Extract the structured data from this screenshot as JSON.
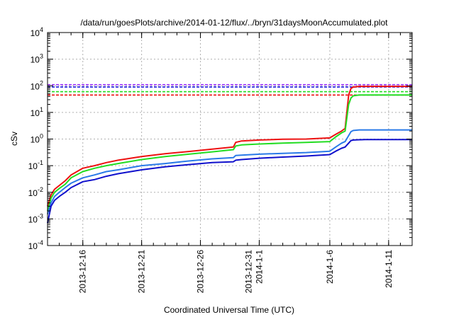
{
  "chart_data": {
    "type": "line",
    "title": "/data/run/goesPlots/archive/2014-01-12/flux/../bryn/31daysMoonAccumulated.plot",
    "xlabel": "Coordinated Universal Time (UTC)",
    "ylabel": "cSv",
    "yscale": "log",
    "ylim": [
      0.0001,
      10000
    ],
    "xlim": [
      0,
      31
    ],
    "grid": true,
    "y_ticks": [
      {
        "value": 0.0001,
        "base": "10",
        "exp": "-4"
      },
      {
        "value": 0.001,
        "base": "10",
        "exp": "-3"
      },
      {
        "value": 0.01,
        "base": "10",
        "exp": "-2"
      },
      {
        "value": 0.1,
        "base": "10",
        "exp": "-1"
      },
      {
        "value": 1,
        "base": "10",
        "exp": "0"
      },
      {
        "value": 10,
        "base": "10",
        "exp": "1"
      },
      {
        "value": 100,
        "base": "10",
        "exp": "2"
      },
      {
        "value": 1000,
        "base": "10",
        "exp": "3"
      },
      {
        "value": 10000,
        "base": "10",
        "exp": "4"
      }
    ],
    "x_ticks": [
      {
        "x": 3,
        "lines": [
          "2013-12-16"
        ]
      },
      {
        "x": 8,
        "lines": [
          "2013-12-21"
        ]
      },
      {
        "x": 13,
        "lines": [
          "2013-12-26"
        ]
      },
      {
        "x": 18,
        "lines": [
          "2013-12-31",
          "2014-1-1"
        ]
      },
      {
        "x": 24,
        "lines": [
          "2014-1-6"
        ]
      },
      {
        "x": 29,
        "lines": [
          "2014-1-11"
        ]
      }
    ],
    "thresholds": [
      {
        "value": 110,
        "color": "#9b30ff"
      },
      {
        "value": 90,
        "color": "#1a1adf"
      },
      {
        "value": 60,
        "color": "#22dd22"
      },
      {
        "value": 45,
        "color": "#ee1111"
      }
    ],
    "series": [
      {
        "color": "#ee1111",
        "x": [
          0,
          0.3,
          0.6,
          1,
          1.5,
          2,
          3,
          4,
          5,
          6,
          8,
          10,
          12,
          14,
          15.8,
          16,
          16.5,
          18,
          20,
          22,
          24,
          24.5,
          25,
          25.3,
          25.6,
          25.8,
          26,
          26.5,
          27,
          28,
          29,
          30,
          31
        ],
        "y": [
          0.003,
          0.008,
          0.013,
          0.018,
          0.027,
          0.045,
          0.08,
          0.1,
          0.13,
          0.16,
          0.22,
          0.28,
          0.34,
          0.42,
          0.5,
          0.75,
          0.85,
          0.92,
          0.98,
          1.0,
          1.1,
          1.5,
          2.0,
          2.5,
          45,
          80,
          90,
          95,
          95,
          95,
          95,
          95,
          95
        ]
      },
      {
        "color": "#22dd22",
        "x": [
          0,
          0.3,
          0.6,
          1,
          1.5,
          2,
          3,
          4,
          5,
          6,
          8,
          10,
          12,
          14,
          15.8,
          16,
          16.5,
          18,
          20,
          22,
          24,
          24.5,
          25,
          25.3,
          25.6,
          25.8,
          26,
          26.5,
          27,
          28,
          29,
          30,
          31
        ],
        "y": [
          0.002,
          0.006,
          0.01,
          0.014,
          0.02,
          0.035,
          0.06,
          0.08,
          0.1,
          0.12,
          0.17,
          0.22,
          0.27,
          0.33,
          0.4,
          0.55,
          0.6,
          0.65,
          0.7,
          0.75,
          0.8,
          1.2,
          1.7,
          2.0,
          20,
          35,
          42,
          45,
          45,
          45,
          45,
          45,
          45
        ]
      },
      {
        "color": "#2a7ae8",
        "x": [
          0,
          0.3,
          0.6,
          1,
          1.5,
          2,
          3,
          4,
          5,
          6,
          8,
          10,
          12,
          14,
          15.8,
          16,
          16.5,
          18,
          20,
          22,
          24,
          24.5,
          25,
          25.3,
          25.8,
          26,
          26.5,
          27,
          28,
          29,
          30,
          31
        ],
        "y": [
          0.0015,
          0.004,
          0.007,
          0.01,
          0.015,
          0.022,
          0.035,
          0.045,
          0.06,
          0.07,
          0.1,
          0.12,
          0.15,
          0.18,
          0.2,
          0.24,
          0.25,
          0.27,
          0.29,
          0.31,
          0.35,
          0.5,
          0.7,
          0.8,
          1.9,
          2.1,
          2.2,
          2.2,
          2.2,
          2.2,
          2.2,
          2.2
        ]
      },
      {
        "color": "#1010cc",
        "x": [
          0,
          0.3,
          0.6,
          1,
          1.5,
          2,
          3,
          4,
          5,
          6,
          8,
          10,
          12,
          14,
          15.8,
          16,
          16.5,
          18,
          20,
          22,
          24,
          24.5,
          25,
          25.3,
          25.8,
          26,
          26.5,
          27,
          28,
          29,
          30,
          31
        ],
        "y": [
          0.0007,
          0.003,
          0.005,
          0.007,
          0.01,
          0.015,
          0.025,
          0.03,
          0.04,
          0.05,
          0.07,
          0.09,
          0.11,
          0.13,
          0.14,
          0.16,
          0.17,
          0.19,
          0.21,
          0.23,
          0.26,
          0.35,
          0.45,
          0.5,
          0.88,
          0.92,
          0.94,
          0.95,
          0.95,
          0.95,
          0.95,
          0.95
        ]
      }
    ]
  }
}
